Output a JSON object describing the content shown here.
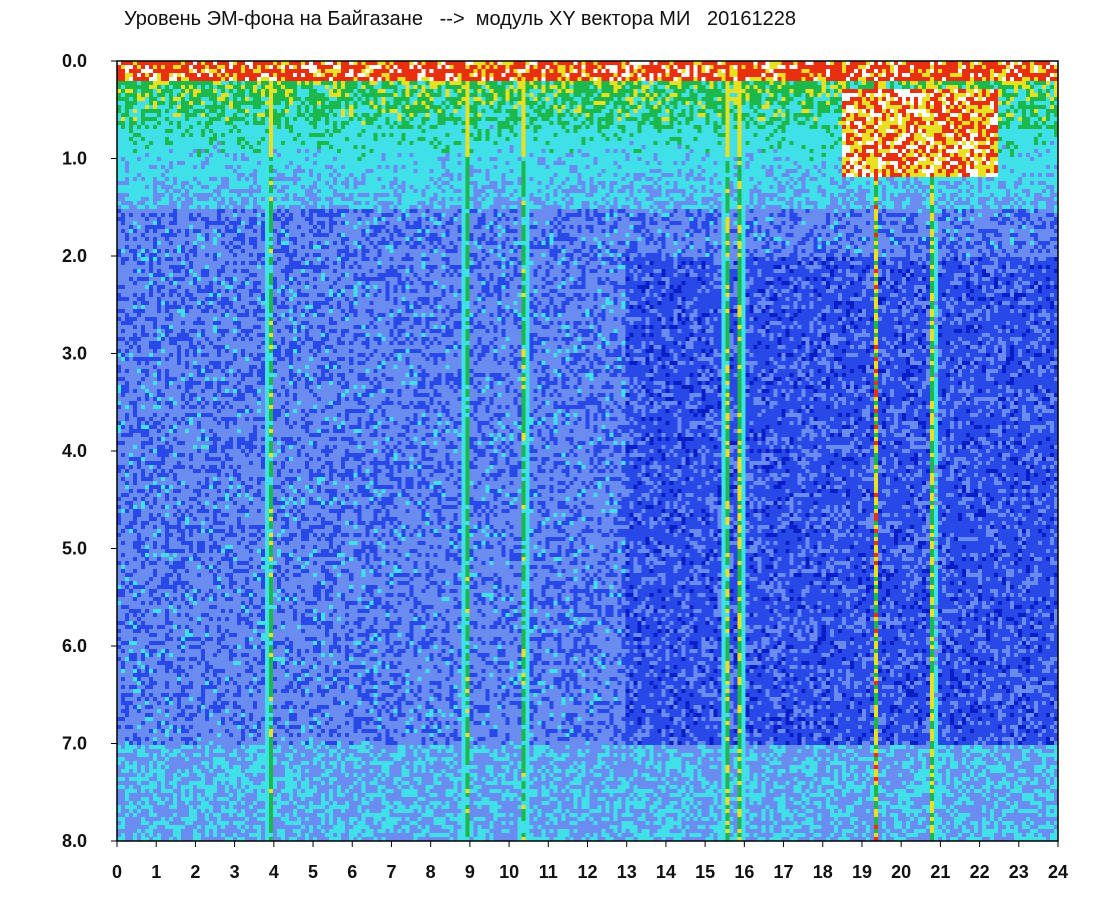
{
  "chart_data": {
    "type": "heatmap",
    "title": "Уровень ЭМ-фона на Байгазане   -->  модуль XY вектора МИ   20161228",
    "xlabel": "",
    "ylabel": "",
    "xlim": [
      0,
      24
    ],
    "ylim": [
      8.0,
      0.0
    ],
    "x_tick_labels": [
      "0",
      "1",
      "2",
      "3",
      "4",
      "5",
      "6",
      "7",
      "8",
      "9",
      "10",
      "11",
      "12",
      "13",
      "14",
      "15",
      "16",
      "17",
      "18",
      "19",
      "20",
      "21",
      "22",
      "23",
      "24"
    ],
    "y_tick_labels": [
      "0.0",
      "1.0",
      "2.0",
      "3.0",
      "4.0",
      "5.0",
      "6.0",
      "7.0",
      "8.0"
    ],
    "y_axis_inverted": true,
    "grid": false,
    "legend": "none",
    "colorscale": [
      "#0a1ec8",
      "#2848e8",
      "#6a8cf0",
      "#40e0e8",
      "#1cb84c",
      "#e8e020",
      "#e83010",
      "#ffffff"
    ],
    "spike_hours": [
      3.9,
      8.9,
      10.4,
      15.55,
      15.9,
      19.35,
      20.8
    ],
    "hotspot": {
      "x_hours": [
        18.5,
        22.5
      ],
      "y": [
        0.3,
        1.2
      ]
    }
  }
}
